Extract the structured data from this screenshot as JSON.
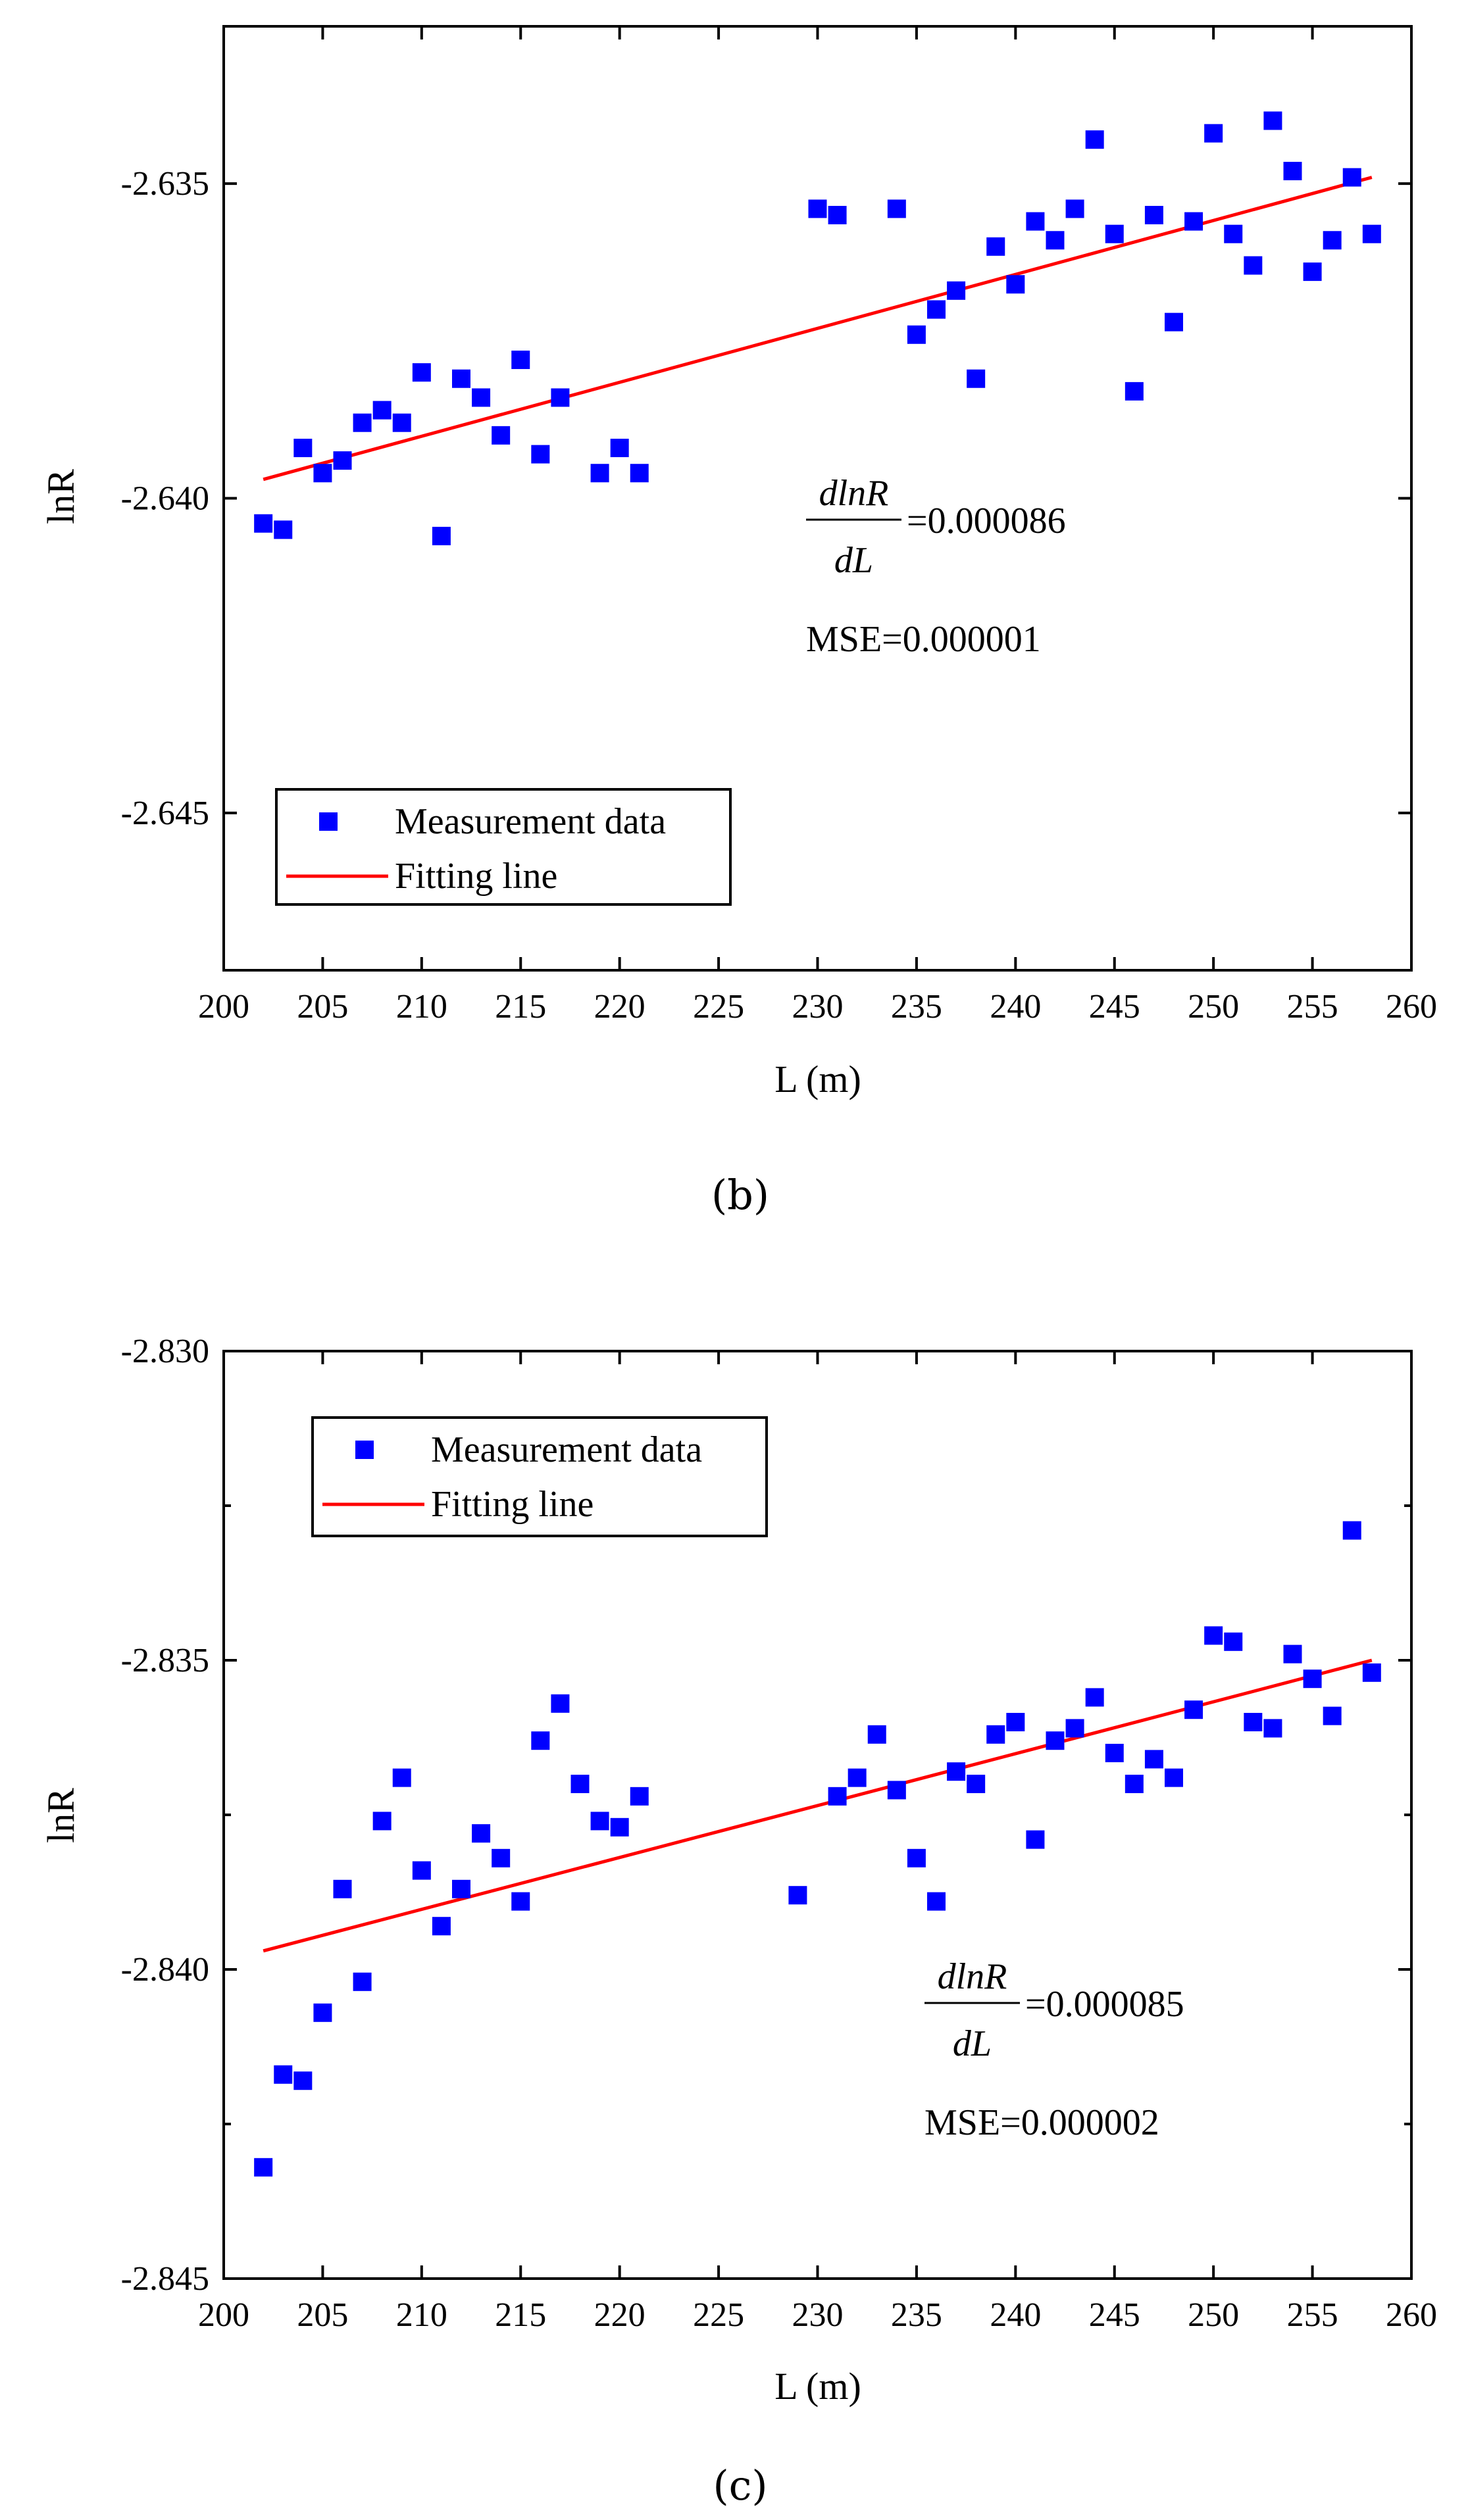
{
  "figure": {
    "panels_label_note": ""
  },
  "chart_data": [
    {
      "type": "scatter",
      "panel_label": "(b)",
      "title": "",
      "xlabel": "L (m)",
      "ylabel": "lnR",
      "xlim": [
        200,
        260
      ],
      "ylim": [
        -2.6475,
        -2.6325
      ],
      "xticks": [
        200,
        205,
        210,
        215,
        220,
        225,
        230,
        235,
        240,
        245,
        250,
        255,
        260
      ],
      "xtick_labels": [
        "200",
        "205",
        "210",
        "215",
        "220",
        "225",
        "230",
        "235",
        "240",
        "245",
        "250",
        "255",
        "260"
      ],
      "yticks": [
        -2.645,
        -2.64,
        -2.635
      ],
      "ytick_labels": [
        "-2.645",
        "-2.640",
        "-2.635"
      ],
      "legend_position": "bottom-left",
      "legend": {
        "scatter": "Measurement data",
        "line": "Fitting line"
      },
      "annotation": {
        "numerator": "dlnR",
        "denominator": "dL",
        "slope_text": "=0.000086",
        "mse_text": "MSE=0.000001"
      },
      "colors": {
        "points": "#0000FF",
        "line": "#FF0000"
      },
      "series": [
        {
          "name": "Measurement data",
          "kind": "points",
          "x": [
            202,
            203,
            204,
            205,
            206,
            207,
            208,
            209,
            210,
            211,
            212,
            213,
            214,
            215,
            216,
            217,
            219,
            220,
            221,
            230,
            231,
            234,
            235,
            236,
            237,
            238,
            239,
            240,
            241,
            242,
            243,
            244,
            245,
            246,
            247,
            248,
            249,
            250,
            251,
            252,
            253,
            254,
            255,
            256,
            257,
            258
          ],
          "y": [
            -2.6404,
            -2.6405,
            -2.6392,
            -2.6396,
            -2.6394,
            -2.6388,
            -2.6386,
            -2.6388,
            -2.638,
            -2.6406,
            -2.6381,
            -2.6384,
            -2.639,
            -2.6378,
            -2.6393,
            -2.6384,
            -2.6396,
            -2.6392,
            -2.6396,
            -2.6354,
            -2.6355,
            -2.6354,
            -2.6374,
            -2.637,
            -2.6367,
            -2.6381,
            -2.636,
            -2.6366,
            -2.6356,
            -2.6359,
            -2.6354,
            -2.6343,
            -2.6358,
            -2.6383,
            -2.6355,
            -2.6372,
            -2.6356,
            -2.6342,
            -2.6358,
            -2.6363,
            -2.634,
            -2.6348,
            -2.6364,
            -2.6359,
            -2.6349,
            -2.6358
          ]
        },
        {
          "name": "Fitting line",
          "kind": "line",
          "x": [
            202,
            258
          ],
          "y": [
            -2.6397,
            -2.6349
          ]
        }
      ]
    },
    {
      "type": "scatter",
      "panel_label": "(c)",
      "title": "",
      "xlabel": "L (m)",
      "ylabel": "lnR",
      "xlim": [
        200,
        260
      ],
      "ylim": [
        -2.845,
        -2.83
      ],
      "xticks": [
        200,
        205,
        210,
        215,
        220,
        225,
        230,
        235,
        240,
        245,
        250,
        255,
        260
      ],
      "xtick_labels": [
        "200",
        "205",
        "210",
        "215",
        "220",
        "225",
        "230",
        "235",
        "240",
        "245",
        "250",
        "255",
        "260"
      ],
      "yticks": [
        -2.845,
        -2.84,
        -2.835,
        -2.83
      ],
      "ytick_labels": [
        "-2.845",
        "-2.840",
        "-2.835",
        "-2.830"
      ],
      "legend_position": "top-left",
      "legend": {
        "scatter": "Measurement data",
        "line": "Fitting line"
      },
      "annotation": {
        "numerator": "dlnR",
        "denominator": "dL",
        "slope_text": "=0.000085",
        "mse_text": "MSE=0.000002"
      },
      "colors": {
        "points": "#0000FF",
        "line": "#FF0000"
      },
      "series": [
        {
          "name": "Measurement data",
          "kind": "points",
          "x": [
            202,
            203,
            204,
            205,
            206,
            207,
            208,
            209,
            210,
            211,
            212,
            213,
            214,
            215,
            216,
            217,
            218,
            219,
            220,
            221,
            229,
            231,
            232,
            233,
            234,
            235,
            236,
            237,
            238,
            239,
            240,
            241,
            242,
            243,
            244,
            245,
            246,
            247,
            248,
            249,
            250,
            251,
            252,
            253,
            254,
            255,
            256,
            257,
            258
          ],
          "y": [
            -2.8432,
            -2.8417,
            -2.8418,
            -2.8407,
            -2.8387,
            -2.8402,
            -2.8376,
            -2.8369,
            -2.8384,
            -2.8393,
            -2.8387,
            -2.8378,
            -2.8382,
            -2.8389,
            -2.8363,
            -2.8357,
            -2.837,
            -2.8376,
            -2.8377,
            -2.8372,
            -2.8388,
            -2.8372,
            -2.8369,
            -2.8362,
            -2.8371,
            -2.8382,
            -2.8389,
            -2.8368,
            -2.837,
            -2.8362,
            -2.836,
            -2.8379,
            -2.8363,
            -2.8361,
            -2.8356,
            -2.8365,
            -2.837,
            -2.8366,
            -2.8369,
            -2.8358,
            -2.8346,
            -2.8347,
            -2.836,
            -2.8361,
            -2.8349,
            -2.8353,
            -2.8359,
            -2.8329,
            -2.8352
          ]
        },
        {
          "name": "Fitting line",
          "kind": "line",
          "x": [
            202,
            258
          ],
          "y": [
            -2.8397,
            -2.835
          ]
        }
      ]
    }
  ]
}
